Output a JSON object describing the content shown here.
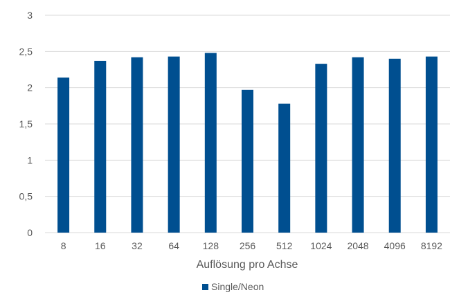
{
  "chart_data": {
    "type": "bar",
    "categories": [
      "8",
      "16",
      "32",
      "64",
      "128",
      "256",
      "512",
      "1024",
      "2048",
      "4096",
      "8192"
    ],
    "series": [
      {
        "name": "Single/Neon",
        "color": "#004f90",
        "values": [
          2.14,
          2.37,
          2.42,
          2.43,
          2.48,
          1.97,
          1.78,
          2.33,
          2.42,
          2.4,
          2.43
        ]
      }
    ],
    "yticks": [
      "0",
      "0,5",
      "1",
      "1,5",
      "2",
      "2,5",
      "3"
    ],
    "ytick_values": [
      0,
      0.5,
      1,
      1.5,
      2,
      2.5,
      3
    ],
    "ylim": [
      0,
      3
    ],
    "xlabel": "Auflösung pro Achse",
    "ylabel": "",
    "title": "",
    "grid": true,
    "legend_position": "bottom"
  }
}
